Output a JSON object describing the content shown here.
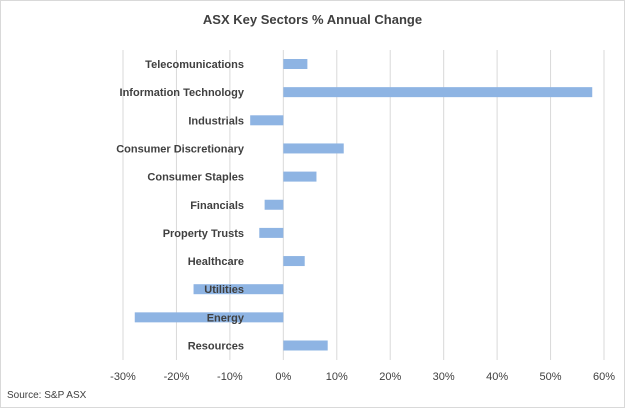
{
  "chart_data": {
    "type": "bar",
    "orientation": "horizontal",
    "title": "ASX Key Sectors % Annual Change",
    "categories": [
      "Telecomunications",
      "Information Technology",
      "Industrials",
      "Consumer Discretionary",
      "Consumer Staples",
      "Financials",
      "Property Trusts",
      "Healthcare",
      "Utilities",
      "Energy",
      "Resources"
    ],
    "values": [
      4.5,
      57.8,
      -6.2,
      11.3,
      6.2,
      -3.5,
      -4.5,
      4.0,
      -16.8,
      -27.8,
      8.3
    ],
    "xlim": [
      -30,
      60
    ],
    "xticks": [
      -30,
      -20,
      -10,
      0,
      10,
      20,
      30,
      40,
      50,
      60
    ],
    "xtick_labels": [
      "-30%",
      "-20%",
      "-10%",
      "0%",
      "10%",
      "20%",
      "30%",
      "40%",
      "50%",
      "60%"
    ],
    "gridlines": "vertical",
    "bar_color": "#8eb4e3",
    "grid_color": "#d9d9d9",
    "text_color": "#404040",
    "xlabel": "",
    "ylabel": ""
  },
  "source": "Source: S&P ASX"
}
